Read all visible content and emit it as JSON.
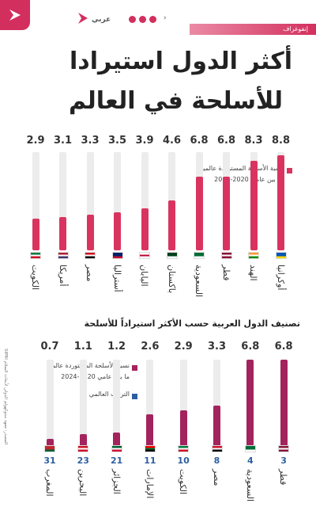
{
  "header": {
    "brand_name": "عربي",
    "section_label": "إنفوغراف",
    "social_icons": [
      "facebook-icon",
      "twitter-icon",
      "youtube-icon",
      "instagram-icon"
    ]
  },
  "chart1": {
    "title_line1": "أكثر الدول استيرادا",
    "title_line2": "للأسلحة في العالم",
    "legend_line1": "نسبة الأسلحة المستوردة عالميا",
    "legend_line2": "ما بين عامي 2020-2024",
    "bar_color": "#d9345f"
  },
  "chart2": {
    "title": "تصنيف الدول العربية حسب الأكثر استيراداً للأسلحة",
    "legend_share_line1": "نسبة الأسلحة المستوردة عالميا",
    "legend_share_line2": "ما بين عامي 2020-2024",
    "legend_rank": "الترتيب العالمي",
    "bar_color": "#a3235d",
    "rank_color": "#2d5fa0"
  },
  "credit": "SIPRI المصدر: معهد ستوكهولم الدولي لأبحاث السلام",
  "chart_data": [
    {
      "type": "bar",
      "title": "أكثر الدول استيرادا للأسلحة في العالم",
      "categories": [
        "الكويت",
        "أمريكا",
        "مصر",
        "أستراليا",
        "اليابان",
        "باكستان",
        "السعودية",
        "قطر",
        "الهند",
        "أوكرانيا"
      ],
      "values": [
        2.9,
        3.1,
        3.3,
        3.5,
        3.9,
        4.6,
        6.8,
        6.8,
        8.3,
        8.8
      ],
      "value_labels": [
        "2.9",
        "3.1",
        "3.3",
        "3.5",
        "3.9",
        "4.6",
        "6.8",
        "6.8",
        "8.3",
        "8.8"
      ],
      "flags": [
        [
          "#007a3d",
          "#ffffff",
          "#ce1126"
        ],
        [
          "#b22234",
          "#ffffff",
          "#3c3b6e"
        ],
        [
          "#ce1126",
          "#ffffff",
          "#000000"
        ],
        [
          "#012169",
          "#012169",
          "#c8102e"
        ],
        [
          "#ffffff",
          "#bc002d",
          "#ffffff"
        ],
        [
          "#01411c",
          "#01411c",
          "#ffffff"
        ],
        [
          "#006c35",
          "#006c35",
          "#ffffff"
        ],
        [
          "#8a1538",
          "#ffffff",
          "#8a1538"
        ],
        [
          "#ff9933",
          "#ffffff",
          "#138808"
        ],
        [
          "#0057b7",
          "#0057b7",
          "#ffd700"
        ]
      ],
      "ylim": [
        0,
        10
      ]
    },
    {
      "type": "bar",
      "title": "تصنيف الدول العربية حسب الأكثر استيراداً للأسلحة",
      "categories": [
        "المغرب",
        "البحرين",
        "الجزائر",
        "الإمارات",
        "الكويت",
        "مصر",
        "السعودية",
        "قطر"
      ],
      "values": [
        0.7,
        1.1,
        1.2,
        2.6,
        2.9,
        3.3,
        6.8,
        6.8
      ],
      "value_labels": [
        "0.7",
        "1.1",
        "1.2",
        "2.6",
        "2.9",
        "3.3",
        "6.8",
        "6.8"
      ],
      "ranks": [
        "31",
        "23",
        "21",
        "11",
        "10",
        "8",
        "4",
        "3"
      ],
      "flags": [
        [
          "#c1272d",
          "#c1272d",
          "#006233"
        ],
        [
          "#ce1126",
          "#ffffff",
          "#ce1126"
        ],
        [
          "#006233",
          "#ffffff",
          "#d21034"
        ],
        [
          "#ff0000",
          "#00732f",
          "#000000"
        ],
        [
          "#007a3d",
          "#ffffff",
          "#ce1126"
        ],
        [
          "#ce1126",
          "#ffffff",
          "#000000"
        ],
        [
          "#006c35",
          "#006c35",
          "#ffffff"
        ],
        [
          "#8a1538",
          "#ffffff",
          "#8a1538"
        ]
      ],
      "ylim": [
        0,
        6.8
      ]
    }
  ]
}
